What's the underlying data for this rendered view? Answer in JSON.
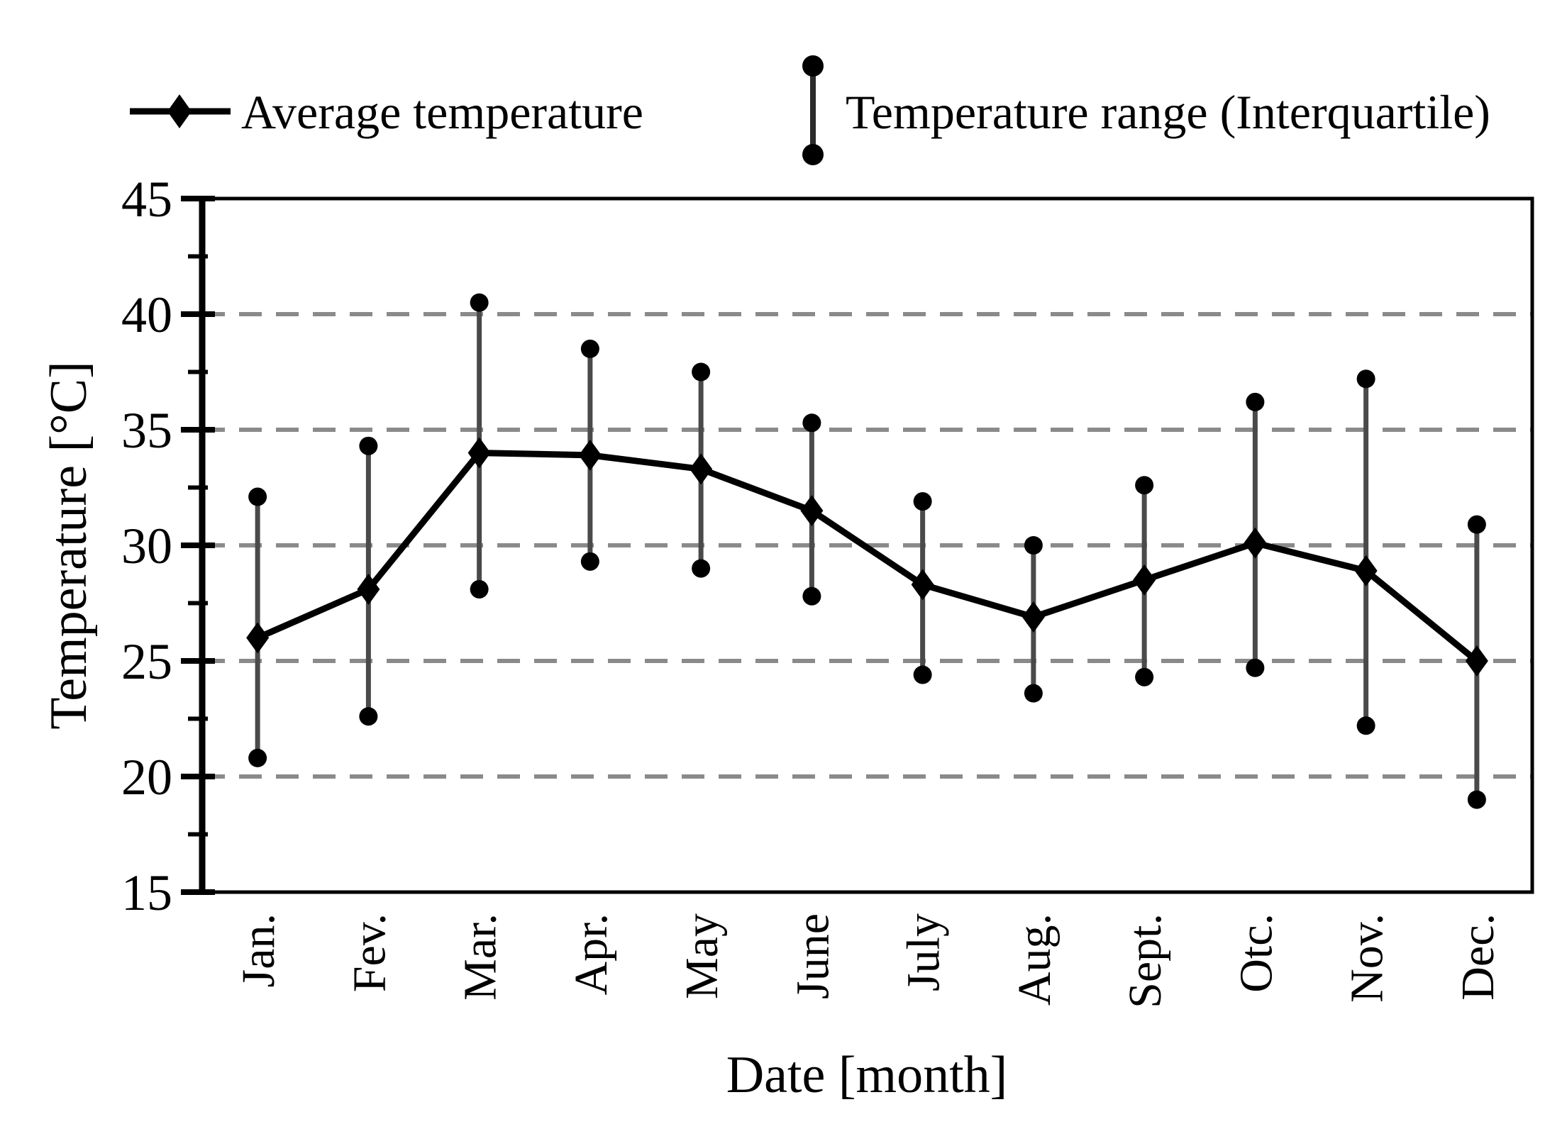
{
  "legend": {
    "average_label": "Average temperature",
    "range_label": "Temperature range (Interquartile)"
  },
  "axes": {
    "x_title": "Date [month]",
    "y_title": "Temperature [°C]"
  },
  "chart_data": {
    "type": "line",
    "title": "",
    "categories": [
      "Jan.",
      "Fev.",
      "Mar.",
      "Apr.",
      "May",
      "June",
      "July",
      "Aug.",
      "Sept.",
      "Otc.",
      "Nov.",
      "Dec."
    ],
    "series": [
      {
        "name": "Average temperature",
        "style": "line-with-diamond-markers",
        "values": [
          26.0,
          28.1,
          34.0,
          33.9,
          33.3,
          31.5,
          28.3,
          26.9,
          28.5,
          30.1,
          28.9,
          25.0
        ]
      },
      {
        "name": "Temperature range (Interquartile)",
        "style": "vertical-error-bars-with-dot-ends",
        "upper": [
          32.1,
          34.3,
          40.5,
          38.5,
          37.5,
          35.3,
          31.9,
          30.0,
          32.6,
          36.2,
          37.2,
          30.9
        ],
        "lower": [
          20.8,
          22.6,
          28.1,
          29.3,
          29.0,
          27.8,
          24.4,
          23.6,
          24.3,
          24.7,
          22.2,
          19.0
        ]
      }
    ],
    "xlabel": "Date [month]",
    "ylabel": "Temperature [°C]",
    "ylim": [
      15,
      45
    ],
    "yticks": [
      15,
      20,
      25,
      30,
      35,
      40,
      45
    ],
    "minor_yticks": [
      17.5,
      22.5,
      27.5,
      32.5,
      37.5,
      42.5
    ],
    "gridlines_at": [
      20,
      25,
      30,
      35,
      40
    ],
    "grid_style": "dashed",
    "legend_position": "top",
    "colors": {
      "average_line": "#000000",
      "whisker_line": "#4a4a4a",
      "marker": "#000000",
      "gridline": "#8a8a8a",
      "axis": "#000000",
      "text": "#000000",
      "background": "#ffffff"
    }
  }
}
